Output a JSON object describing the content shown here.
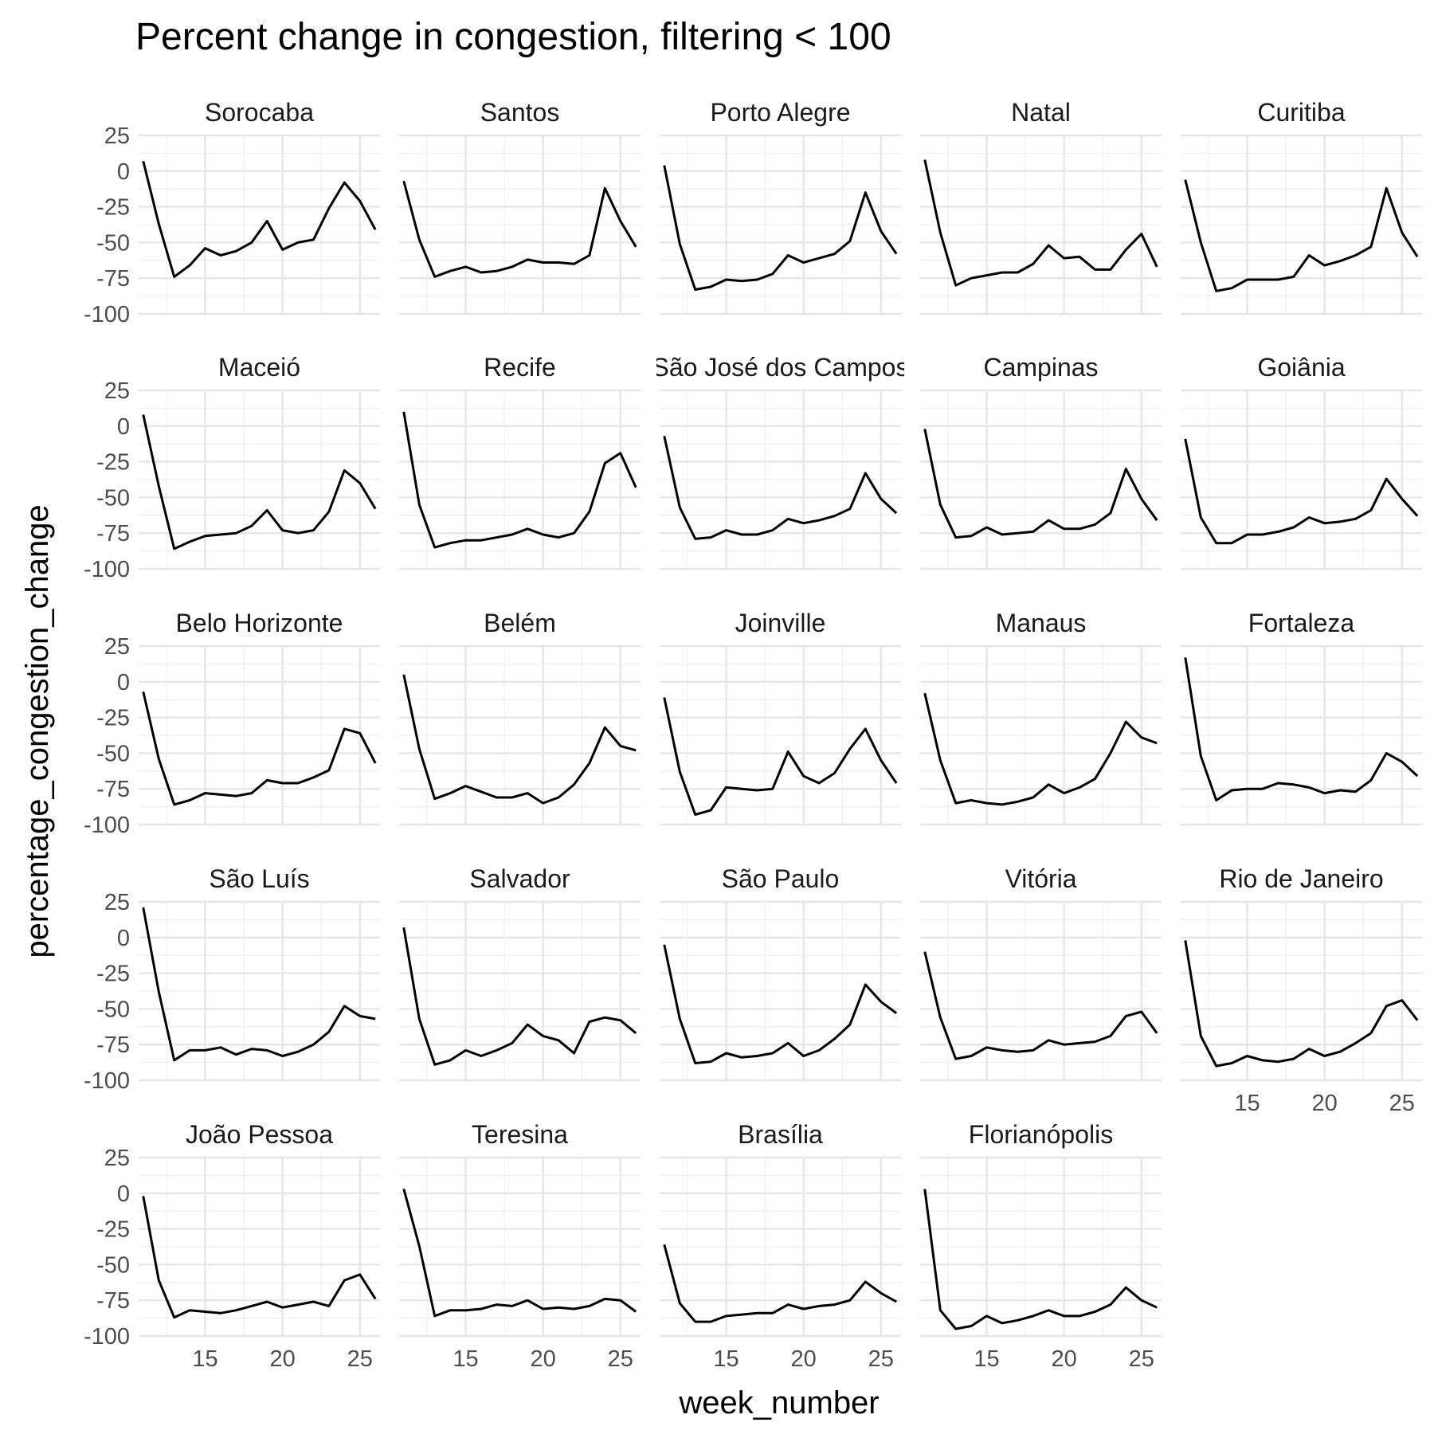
{
  "chart_data": {
    "type": "line",
    "title": "Percent change in congestion, filtering < 100",
    "xlabel": "week_number",
    "ylabel": "percentage_congestion_change",
    "x": [
      11,
      12,
      13,
      14,
      15,
      16,
      17,
      18,
      19,
      20,
      21,
      22,
      23,
      24,
      25,
      26
    ],
    "xlim": [
      10.7,
      26.3
    ],
    "ylim": [
      -100,
      25
    ],
    "x_ticks": [
      15,
      20,
      25
    ],
    "y_ticks": [
      25,
      0,
      -25,
      -50,
      -75,
      -100
    ],
    "x_tick_labels": [
      "15",
      "20",
      "25"
    ],
    "y_tick_labels": [
      "25",
      "0",
      "-25",
      "-50",
      "-75",
      "-100"
    ],
    "ncol": 5,
    "grid": true,
    "line_color": "#000000",
    "panels": [
      {
        "name": "Sorocaba",
        "values": [
          7,
          -37,
          -74,
          -66,
          -54,
          -59,
          -56,
          -50,
          -35,
          -55,
          -50,
          -48,
          -26,
          -8,
          -21,
          -41
        ]
      },
      {
        "name": "Santos",
        "values": [
          -7,
          -48,
          -74,
          -70,
          -67,
          -71,
          -70,
          -67,
          -62,
          -64,
          -64,
          -65,
          -59,
          -12,
          -35,
          -53
        ]
      },
      {
        "name": "Porto Alegre",
        "values": [
          4,
          -51,
          -83,
          -81,
          -76,
          -77,
          -76,
          -72,
          -59,
          -64,
          -61,
          -58,
          -49,
          -15,
          -42,
          -58
        ]
      },
      {
        "name": "Natal",
        "values": [
          8,
          -43,
          -80,
          -75,
          -73,
          -71,
          -71,
          -65,
          -52,
          -61,
          -60,
          -69,
          -69,
          -55,
          -44,
          -67
        ]
      },
      {
        "name": "Curitiba",
        "values": [
          -6,
          -50,
          -84,
          -82,
          -76,
          -76,
          -76,
          -74,
          -59,
          -66,
          -63,
          -59,
          -53,
          -12,
          -43,
          -60
        ]
      },
      {
        "name": "Maceió",
        "values": [
          8,
          -42,
          -86,
          -81,
          -77,
          -76,
          -75,
          -70,
          -59,
          -73,
          -75,
          -73,
          -60,
          -31,
          -40,
          -58
        ]
      },
      {
        "name": "Recife",
        "values": [
          10,
          -55,
          -85,
          -82,
          -80,
          -80,
          -78,
          -76,
          -72,
          -76,
          -78,
          -75,
          -60,
          -26,
          -19,
          -43
        ]
      },
      {
        "name": "São José dos Campos",
        "values": [
          -7,
          -57,
          -79,
          -78,
          -73,
          -76,
          -76,
          -73,
          -65,
          -68,
          -66,
          -63,
          -58,
          -33,
          -51,
          -61
        ]
      },
      {
        "name": "Campinas",
        "values": [
          -2,
          -55,
          -78,
          -77,
          -71,
          -76,
          -75,
          -74,
          -66,
          -72,
          -72,
          -69,
          -61,
          -30,
          -51,
          -66
        ]
      },
      {
        "name": "Goiânia",
        "values": [
          -9,
          -64,
          -82,
          -82,
          -76,
          -76,
          -74,
          -71,
          -64,
          -68,
          -67,
          -65,
          -59,
          -37,
          -51,
          -63
        ]
      },
      {
        "name": "Belo Horizonte",
        "values": [
          -7,
          -54,
          -86,
          -83,
          -78,
          -79,
          -80,
          -78,
          -69,
          -71,
          -71,
          -67,
          -62,
          -33,
          -36,
          -57
        ]
      },
      {
        "name": "Belém",
        "values": [
          5,
          -47,
          -82,
          -78,
          -73,
          -77,
          -81,
          -81,
          -78,
          -85,
          -81,
          -72,
          -57,
          -32,
          -45,
          -48
        ]
      },
      {
        "name": "Joinville",
        "values": [
          -11,
          -63,
          -93,
          -90,
          -74,
          -75,
          -76,
          -75,
          -49,
          -66,
          -71,
          -64,
          -47,
          -33,
          -55,
          -71
        ]
      },
      {
        "name": "Manaus",
        "values": [
          -8,
          -55,
          -85,
          -83,
          -85,
          -86,
          -84,
          -81,
          -72,
          -78,
          -74,
          -68,
          -50,
          -28,
          -39,
          -43
        ]
      },
      {
        "name": "Fortaleza",
        "values": [
          17,
          -52,
          -83,
          -76,
          -75,
          -75,
          -71,
          -72,
          -74,
          -78,
          -76,
          -77,
          -69,
          -50,
          -56,
          -66
        ]
      },
      {
        "name": "São Luís",
        "values": [
          21,
          -38,
          -86,
          -79,
          -79,
          -77,
          -82,
          -78,
          -79,
          -83,
          -80,
          -75,
          -66,
          -48,
          -55,
          -57
        ]
      },
      {
        "name": "Salvador",
        "values": [
          7,
          -57,
          -89,
          -86,
          -79,
          -83,
          -79,
          -74,
          -61,
          -69,
          -72,
          -81,
          -59,
          -56,
          -58,
          -67
        ]
      },
      {
        "name": "São Paulo",
        "values": [
          -5,
          -57,
          -88,
          -87,
          -81,
          -84,
          -83,
          -81,
          -74,
          -83,
          -79,
          -71,
          -61,
          -33,
          -45,
          -53
        ]
      },
      {
        "name": "Vitória",
        "values": [
          -10,
          -56,
          -85,
          -83,
          -77,
          -79,
          -80,
          -79,
          -72,
          -75,
          -74,
          -73,
          -69,
          -55,
          -52,
          -67
        ]
      },
      {
        "name": "Rio de Janeiro",
        "values": [
          -2,
          -69,
          -90,
          -88,
          -83,
          -86,
          -87,
          -85,
          -78,
          -83,
          -80,
          -74,
          -67,
          -48,
          -44,
          -58
        ]
      },
      {
        "name": "João Pessoa",
        "values": [
          -2,
          -61,
          -87,
          -82,
          -83,
          -84,
          -82,
          -79,
          -76,
          -80,
          -78,
          -76,
          -79,
          -61,
          -57,
          -74
        ]
      },
      {
        "name": "Teresina",
        "values": [
          3,
          -37,
          -86,
          -82,
          -82,
          -81,
          -78,
          -79,
          -75,
          -81,
          -80,
          -81,
          -79,
          -74,
          -75,
          -83
        ]
      },
      {
        "name": "Brasília",
        "values": [
          -36,
          -77,
          -90,
          -90,
          -86,
          -85,
          -84,
          -84,
          -78,
          -81,
          -79,
          -78,
          -75,
          -62,
          -70,
          -76
        ]
      },
      {
        "name": "Florianópolis",
        "values": [
          3,
          -82,
          -95,
          -93,
          -86,
          -91,
          -89,
          -86,
          -82,
          -86,
          -86,
          -83,
          -78,
          -66,
          -75,
          -80
        ]
      }
    ]
  }
}
